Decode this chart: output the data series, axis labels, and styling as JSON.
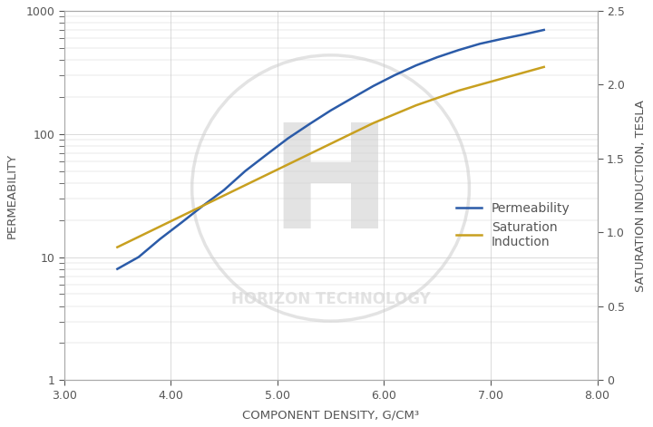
{
  "x_permeability": [
    3.5,
    3.7,
    3.9,
    4.1,
    4.3,
    4.5,
    4.7,
    4.9,
    5.1,
    5.3,
    5.5,
    5.7,
    5.9,
    6.1,
    6.3,
    6.5,
    6.7,
    6.9,
    7.1,
    7.3,
    7.5
  ],
  "y_permeability": [
    8,
    10,
    14,
    19,
    26,
    35,
    50,
    68,
    92,
    120,
    155,
    195,
    245,
    300,
    360,
    420,
    480,
    540,
    590,
    640,
    700
  ],
  "x_saturation": [
    3.5,
    3.7,
    3.9,
    4.1,
    4.3,
    4.5,
    4.7,
    4.9,
    5.1,
    5.3,
    5.5,
    5.7,
    5.9,
    6.1,
    6.3,
    6.5,
    6.7,
    6.9,
    7.1,
    7.3,
    7.5
  ],
  "y_saturation": [
    0.9,
    0.97,
    1.04,
    1.11,
    1.18,
    1.25,
    1.32,
    1.39,
    1.46,
    1.53,
    1.6,
    1.67,
    1.74,
    1.8,
    1.86,
    1.91,
    1.96,
    2.0,
    2.04,
    2.08,
    2.12
  ],
  "xlim": [
    3.0,
    8.0
  ],
  "ylim_left": [
    1,
    1000
  ],
  "ylim_right": [
    0,
    2.5
  ],
  "xticks": [
    3.0,
    4.0,
    5.0,
    6.0,
    7.0,
    8.0
  ],
  "xtick_labels": [
    "3.00",
    "4.00",
    "5.00",
    "6.00",
    "7.00",
    "8.00"
  ],
  "yticks_right": [
    0,
    0.5,
    1.0,
    1.5,
    2.0,
    2.5
  ],
  "xlabel": "COMPONENT DENSITY, G/CM³",
  "ylabel_left": "PERMEABILITY",
  "ylabel_right": "SATURATION INDUCTION, TESLA",
  "color_permeability": "#2B5BA8",
  "color_saturation": "#C8A020",
  "watermark_H": "H",
  "watermark_bottom": "HORIZON TECHNOLOGY",
  "legend_permeability": "Permeability",
  "legend_saturation": "Saturation\nInduction",
  "background_color": "#ffffff",
  "grid_color": "#cccccc",
  "tick_label_color": "#555555",
  "axis_label_color": "#555555",
  "watermark_color": "#d8d8d8",
  "line_width": 1.8
}
